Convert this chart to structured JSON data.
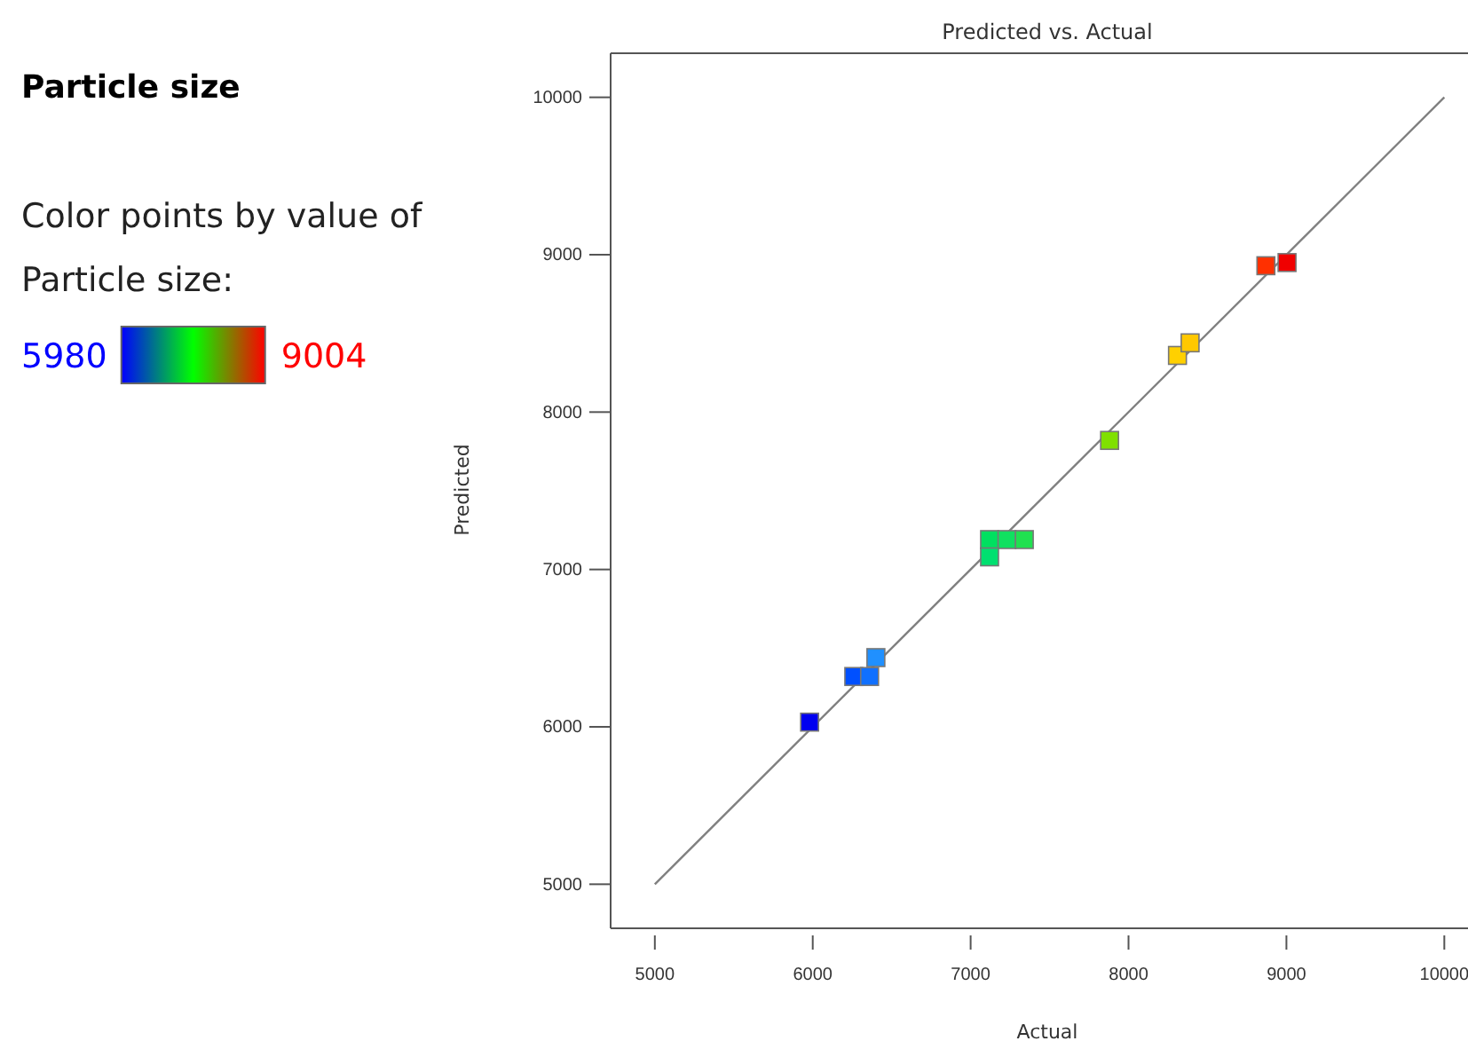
{
  "chart_data": {
    "type": "scatter",
    "title": "Predicted vs. Actual",
    "subtitle": "Particle size",
    "xlabel": "Actual",
    "ylabel": "Predicted",
    "clabel": "Color points by value of Particle size:",
    "annotations": [
      "5980",
      "9004"
    ],
    "xlim": [
      4720,
      10150
    ],
    "ylim": [
      4720,
      10280
    ],
    "xticks": [
      5000,
      6000,
      7000,
      8000,
      9000,
      10000
    ],
    "yticks": [
      5000,
      6000,
      7000,
      8000,
      9000,
      10000
    ],
    "grid": false,
    "marker": "square",
    "series": [
      {
        "x": [
          5980,
          6260,
          6360,
          6400,
          7120,
          7230,
          7340,
          7120,
          7880,
          8310,
          8390,
          8870,
          9004
        ],
        "values": [
          6030,
          6320,
          6320,
          6440,
          7190,
          7190,
          7190,
          7080,
          7820,
          8360,
          8440,
          8930,
          8950
        ],
        "colors": [
          "#0000f0",
          "#0050ff",
          "#1070ff",
          "#2090ff",
          "#00e060",
          "#10e060",
          "#20e050",
          "#00e070",
          "#80e000",
          "#ffd000",
          "#ffc800",
          "#ff3000",
          "#f00000"
        ]
      },
      {
        "type": "line",
        "x": [
          5000,
          10000
        ],
        "values": [
          5000,
          10000
        ],
        "color": "#808080",
        "marker": "none",
        "line_style": "solid"
      }
    ]
  }
}
